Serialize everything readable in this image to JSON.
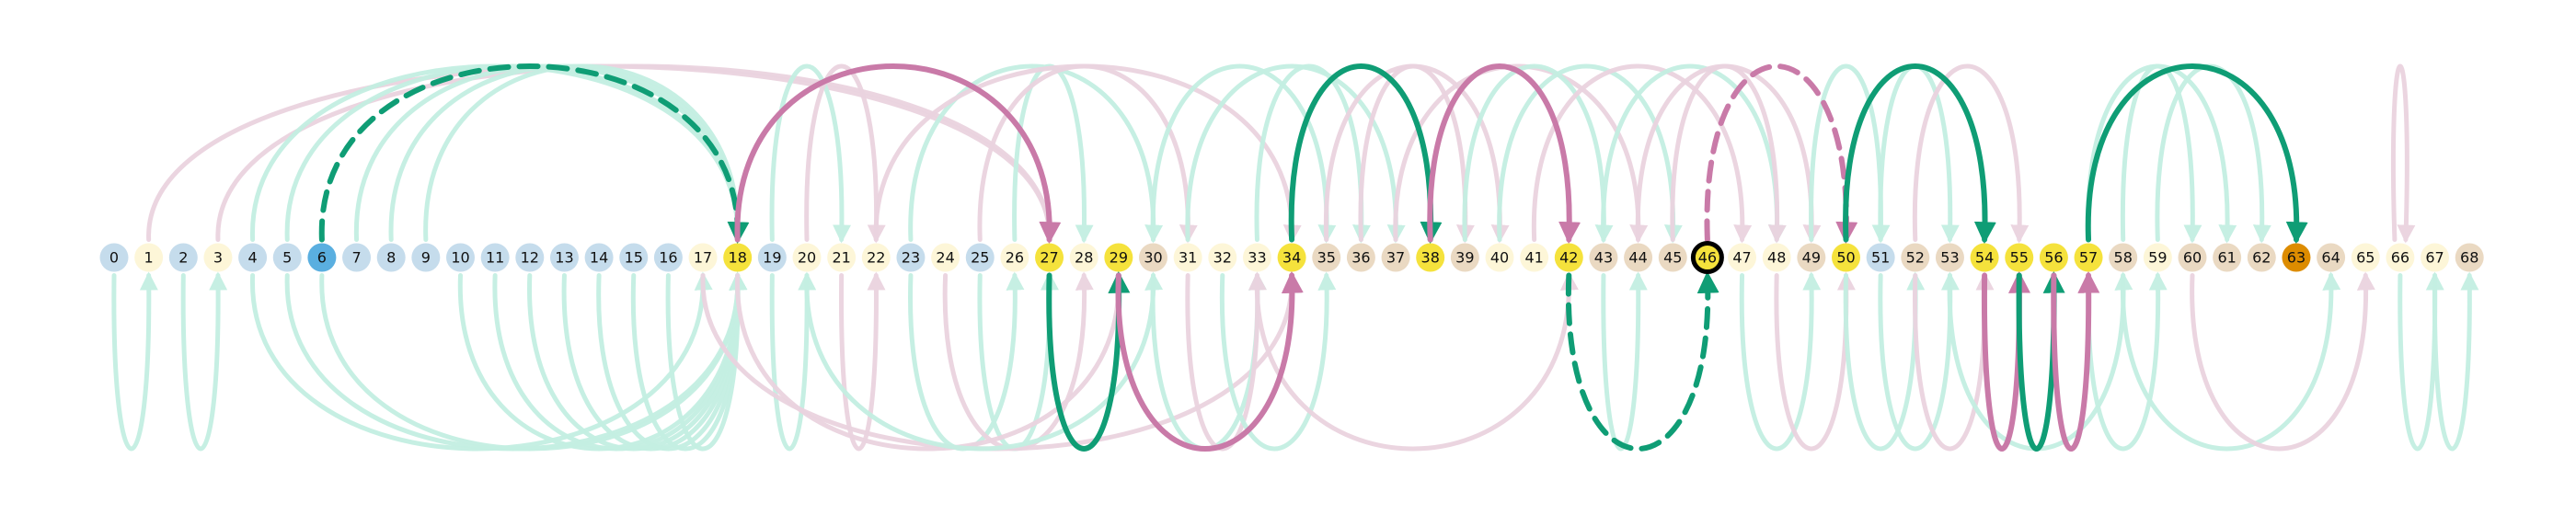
{
  "nodes": [
    {
      "label": "0",
      "color": "#c5dcec"
    },
    {
      "label": "1",
      "color": "#fdf6d8"
    },
    {
      "label": "2",
      "color": "#c5dcec"
    },
    {
      "label": "3",
      "color": "#fdf6d8"
    },
    {
      "label": "4",
      "color": "#c5dcec"
    },
    {
      "label": "5",
      "color": "#c5dcec"
    },
    {
      "label": "6",
      "color": "#5aafe0"
    },
    {
      "label": "7",
      "color": "#c5dcec"
    },
    {
      "label": "8",
      "color": "#c5dcec"
    },
    {
      "label": "9",
      "color": "#c5dcec"
    },
    {
      "label": "10",
      "color": "#c5dcec"
    },
    {
      "label": "11",
      "color": "#c5dcec"
    },
    {
      "label": "12",
      "color": "#c5dcec"
    },
    {
      "label": "13",
      "color": "#c5dcec"
    },
    {
      "label": "14",
      "color": "#c5dcec"
    },
    {
      "label": "15",
      "color": "#c5dcec"
    },
    {
      "label": "16",
      "color": "#c5dcec"
    },
    {
      "label": "17",
      "color": "#fdf6d8"
    },
    {
      "label": "18",
      "color": "#f5e23c"
    },
    {
      "label": "19",
      "color": "#c5dcec"
    },
    {
      "label": "20",
      "color": "#fdf6d8"
    },
    {
      "label": "21",
      "color": "#fdf6d8"
    },
    {
      "label": "22",
      "color": "#fdf6d8"
    },
    {
      "label": "23",
      "color": "#c5dcec"
    },
    {
      "label": "24",
      "color": "#fdf6d8"
    },
    {
      "label": "25",
      "color": "#c5dcec"
    },
    {
      "label": "26",
      "color": "#fdf6d8"
    },
    {
      "label": "27",
      "color": "#f5e23c"
    },
    {
      "label": "28",
      "color": "#fdf6d8"
    },
    {
      "label": "29",
      "color": "#f5e23c"
    },
    {
      "label": "30",
      "color": "#ead9c2"
    },
    {
      "label": "31",
      "color": "#fdf6d8"
    },
    {
      "label": "32",
      "color": "#fdf6d8"
    },
    {
      "label": "33",
      "color": "#fdf6d8"
    },
    {
      "label": "34",
      "color": "#f5e23c"
    },
    {
      "label": "35",
      "color": "#ead9c2"
    },
    {
      "label": "36",
      "color": "#ead9c2"
    },
    {
      "label": "37",
      "color": "#ead9c2"
    },
    {
      "label": "38",
      "color": "#f5e23c"
    },
    {
      "label": "39",
      "color": "#ead9c2"
    },
    {
      "label": "40",
      "color": "#fdf6d8"
    },
    {
      "label": "41",
      "color": "#fdf6d8"
    },
    {
      "label": "42",
      "color": "#f5e23c"
    },
    {
      "label": "43",
      "color": "#ead9c2"
    },
    {
      "label": "44",
      "color": "#ead9c2"
    },
    {
      "label": "45",
      "color": "#ead9c2"
    },
    {
      "label": "46",
      "color": "#f5e23c"
    },
    {
      "label": "47",
      "color": "#fdf6d8"
    },
    {
      "label": "48",
      "color": "#fdf6d8"
    },
    {
      "label": "49",
      "color": "#ead9c2"
    },
    {
      "label": "50",
      "color": "#f5e23c"
    },
    {
      "label": "51",
      "color": "#c5dcec"
    },
    {
      "label": "52",
      "color": "#ead9c2"
    },
    {
      "label": "53",
      "color": "#ead9c2"
    },
    {
      "label": "54",
      "color": "#f5e23c"
    },
    {
      "label": "55",
      "color": "#f5e23c"
    },
    {
      "label": "56",
      "color": "#f5e23c"
    },
    {
      "label": "57",
      "color": "#f5e23c"
    },
    {
      "label": "58",
      "color": "#ead9c2"
    },
    {
      "label": "59",
      "color": "#fdf6d8"
    },
    {
      "label": "60",
      "color": "#ead9c2"
    },
    {
      "label": "61",
      "color": "#ead9c2"
    },
    {
      "label": "62",
      "color": "#ead9c2"
    },
    {
      "label": "63",
      "color": "#dd8c00"
    },
    {
      "label": "64",
      "color": "#ead9c2"
    },
    {
      "label": "65",
      "color": "#fdf6d8"
    },
    {
      "label": "66",
      "color": "#fdf6d8"
    },
    {
      "label": "67",
      "color": "#fdf6d8"
    },
    {
      "label": "68",
      "color": "#ead9c2"
    }
  ],
  "highlighted_node": 46,
  "colors": {
    "green": "#0f9d75",
    "pink": "#c97aa8",
    "green_faint": "#c4efe2",
    "pink_faint": "#ead3df",
    "ring": "#000000"
  },
  "strong_edges": [
    {
      "from": 6,
      "to": 18,
      "color": "green",
      "style": "dashed",
      "side": "top"
    },
    {
      "from": 18,
      "to": 27,
      "color": "pink",
      "style": "solid",
      "side": "top"
    },
    {
      "from": 27,
      "to": 29,
      "color": "green",
      "style": "solid",
      "side": "bottom"
    },
    {
      "from": 29,
      "to": 34,
      "color": "pink",
      "style": "solid",
      "side": "bottom"
    },
    {
      "from": 34,
      "to": 38,
      "color": "green",
      "style": "solid",
      "side": "top"
    },
    {
      "from": 38,
      "to": 42,
      "color": "pink",
      "style": "solid",
      "side": "top"
    },
    {
      "from": 42,
      "to": 46,
      "color": "green",
      "style": "dashed",
      "side": "bottom"
    },
    {
      "from": 46,
      "to": 50,
      "color": "pink",
      "style": "dashed",
      "side": "top"
    },
    {
      "from": 50,
      "to": 54,
      "color": "green",
      "style": "solid",
      "side": "top"
    },
    {
      "from": 54,
      "to": 55,
      "color": "pink",
      "style": "solid",
      "side": "bottom"
    },
    {
      "from": 55,
      "to": 56,
      "color": "green",
      "style": "solid",
      "side": "bottom"
    },
    {
      "from": 56,
      "to": 57,
      "color": "pink",
      "style": "solid",
      "side": "bottom"
    },
    {
      "from": 57,
      "to": 63,
      "color": "green",
      "style": "solid",
      "side": "top"
    }
  ],
  "faint_edges": [
    {
      "from": 0,
      "to": 1,
      "color": "green",
      "side": "bottom"
    },
    {
      "from": 2,
      "to": 3,
      "color": "green",
      "side": "bottom"
    },
    {
      "from": 1,
      "to": 27,
      "color": "pink",
      "side": "top"
    },
    {
      "from": 3,
      "to": 27,
      "color": "pink",
      "side": "top"
    },
    {
      "from": 4,
      "to": 18,
      "color": "green",
      "side": "top"
    },
    {
      "from": 5,
      "to": 18,
      "color": "green",
      "side": "top"
    },
    {
      "from": 7,
      "to": 18,
      "color": "green",
      "side": "top"
    },
    {
      "from": 8,
      "to": 18,
      "color": "green",
      "side": "top"
    },
    {
      "from": 9,
      "to": 18,
      "color": "green",
      "side": "top"
    },
    {
      "from": 10,
      "to": 18,
      "color": "green",
      "side": "bottom"
    },
    {
      "from": 11,
      "to": 18,
      "color": "green",
      "side": "bottom"
    },
    {
      "from": 12,
      "to": 18,
      "color": "green",
      "side": "bottom"
    },
    {
      "from": 13,
      "to": 18,
      "color": "green",
      "side": "bottom"
    },
    {
      "from": 14,
      "to": 18,
      "color": "green",
      "side": "bottom"
    },
    {
      "from": 15,
      "to": 18,
      "color": "green",
      "side": "bottom"
    },
    {
      "from": 16,
      "to": 18,
      "color": "green",
      "side": "bottom"
    },
    {
      "from": 6,
      "to": 18,
      "color": "green",
      "side": "bottom"
    },
    {
      "from": 5,
      "to": 18,
      "color": "green",
      "side": "bottom"
    },
    {
      "from": 4,
      "to": 17,
      "color": "green",
      "side": "bottom"
    },
    {
      "from": 19,
      "to": 21,
      "color": "green",
      "side": "top"
    },
    {
      "from": 20,
      "to": 22,
      "color": "pink",
      "side": "top"
    },
    {
      "from": 19,
      "to": 20,
      "color": "green",
      "side": "bottom"
    },
    {
      "from": 21,
      "to": 22,
      "color": "pink",
      "side": "bottom"
    },
    {
      "from": 23,
      "to": 26,
      "color": "green",
      "side": "bottom"
    },
    {
      "from": 24,
      "to": 28,
      "color": "pink",
      "side": "bottom"
    },
    {
      "from": 25,
      "to": 27,
      "color": "green",
      "side": "bottom"
    },
    {
      "from": 18,
      "to": 29,
      "color": "pink",
      "side": "bottom"
    },
    {
      "from": 17,
      "to": 34,
      "color": "pink",
      "side": "bottom"
    },
    {
      "from": 20,
      "to": 30,
      "color": "green",
      "side": "bottom"
    },
    {
      "from": 26,
      "to": 28,
      "color": "green",
      "side": "top"
    },
    {
      "from": 23,
      "to": 30,
      "color": "green",
      "side": "top"
    },
    {
      "from": 25,
      "to": 31,
      "color": "pink",
      "side": "top"
    },
    {
      "from": 22,
      "to": 34,
      "color": "pink",
      "side": "top"
    },
    {
      "from": 30,
      "to": 33,
      "color": "green",
      "side": "bottom"
    },
    {
      "from": 31,
      "to": 33,
      "color": "pink",
      "side": "bottom"
    },
    {
      "from": 32,
      "to": 35,
      "color": "green",
      "side": "bottom"
    },
    {
      "from": 30,
      "to": 35,
      "color": "green",
      "side": "top"
    },
    {
      "from": 31,
      "to": 37,
      "color": "green",
      "side": "top"
    },
    {
      "from": 33,
      "to": 36,
      "color": "green",
      "side": "top"
    },
    {
      "from": 35,
      "to": 40,
      "color": "pink",
      "side": "top"
    },
    {
      "from": 36,
      "to": 39,
      "color": "pink",
      "side": "top"
    },
    {
      "from": 37,
      "to": 44,
      "color": "pink",
      "side": "top"
    },
    {
      "from": 39,
      "to": 43,
      "color": "green",
      "side": "top"
    },
    {
      "from": 40,
      "to": 45,
      "color": "green",
      "side": "top"
    },
    {
      "from": 33,
      "to": 42,
      "color": "pink",
      "side": "bottom"
    },
    {
      "from": 41,
      "to": 47,
      "color": "pink",
      "side": "top"
    },
    {
      "from": 43,
      "to": 48,
      "color": "green",
      "side": "top"
    },
    {
      "from": 44,
      "to": 49,
      "color": "pink",
      "side": "top"
    },
    {
      "from": 45,
      "to": 48,
      "color": "pink",
      "side": "top"
    },
    {
      "from": 43,
      "to": 44,
      "color": "green",
      "side": "bottom"
    },
    {
      "from": 47,
      "to": 49,
      "color": "green",
      "side": "bottom"
    },
    {
      "from": 48,
      "to": 50,
      "color": "pink",
      "side": "bottom"
    },
    {
      "from": 49,
      "to": 51,
      "color": "green",
      "side": "top"
    },
    {
      "from": 51,
      "to": 53,
      "color": "green",
      "side": "top"
    },
    {
      "from": 52,
      "to": 55,
      "color": "pink",
      "side": "top"
    },
    {
      "from": 50,
      "to": 52,
      "color": "green",
      "side": "bottom"
    },
    {
      "from": 51,
      "to": 53,
      "color": "green",
      "side": "bottom"
    },
    {
      "from": 52,
      "to": 54,
      "color": "pink",
      "side": "bottom"
    },
    {
      "from": 53,
      "to": 58,
      "color": "green",
      "side": "bottom"
    },
    {
      "from": 57,
      "to": 61,
      "color": "green",
      "side": "top"
    },
    {
      "from": 58,
      "to": 60,
      "color": "green",
      "side": "top"
    },
    {
      "from": 59,
      "to": 62,
      "color": "green",
      "side": "top"
    },
    {
      "from": 57,
      "to": 59,
      "color": "green",
      "side": "bottom"
    },
    {
      "from": 58,
      "to": 64,
      "color": "green",
      "side": "bottom"
    },
    {
      "from": 60,
      "to": 65,
      "color": "pink",
      "side": "bottom"
    },
    {
      "from": 66,
      "to": 67,
      "color": "green",
      "side": "bottom"
    },
    {
      "from": 67,
      "to": 68,
      "color": "green",
      "side": "bottom"
    },
    {
      "from": 66,
      "to": 66,
      "color": "pink",
      "side": "top"
    }
  ]
}
